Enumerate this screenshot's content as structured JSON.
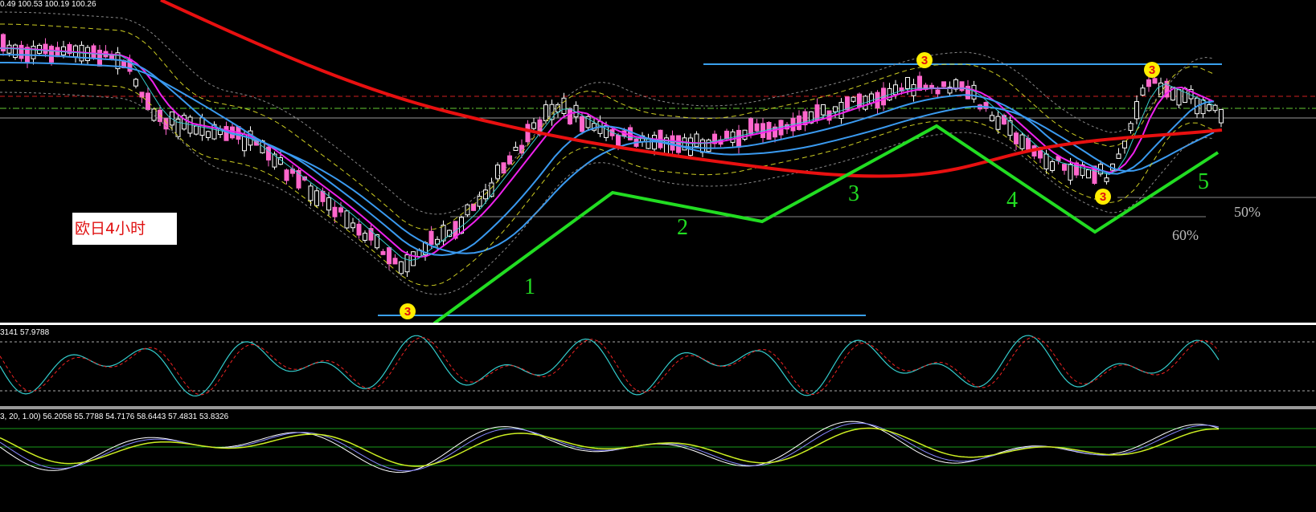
{
  "header": {
    "price_info": "0.49 100.53 100.19 100.26"
  },
  "chart_label": "欧日4小时",
  "wave_labels": [
    "1",
    "2",
    "3",
    "4",
    "5"
  ],
  "fib_labels": [
    "50%",
    "60%"
  ],
  "markers": [
    "3",
    "3",
    "3",
    "3"
  ],
  "panels": [
    {
      "info": "3141 57.9788"
    },
    {
      "info": "3, 20, 1.00) 56.2058 55.7788 54.7176 58.6443 57.4831 53.8326"
    }
  ]
}
